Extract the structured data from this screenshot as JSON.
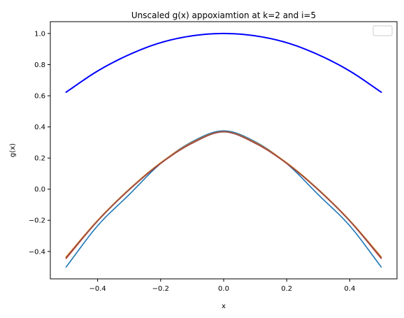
{
  "chart_data": {
    "type": "line",
    "title": "Unscaled g(x) appoxiamtion at k=2 and i=5",
    "xlabel": "x",
    "ylabel": "g(x)",
    "xlim": [
      -0.55,
      0.55
    ],
    "ylim": [
      -0.576,
      1.076
    ],
    "xticks": [
      -0.4,
      -0.2,
      0.0,
      0.2,
      0.4
    ],
    "xtick_labels": [
      "−0.4",
      "−0.2",
      "0.0",
      "0.2",
      "0.4"
    ],
    "yticks": [
      -0.4,
      -0.2,
      0.0,
      0.2,
      0.4,
      0.6,
      0.8,
      1.0
    ],
    "ytick_labels": [
      "−0.4",
      "−0.2",
      "0.0",
      "0.2",
      "0.4",
      "0.6",
      "0.8",
      "1.0"
    ],
    "grid": false,
    "legend": "top-right (empty)",
    "series": [
      {
        "color": "#0000ff",
        "x": [
          -0.5,
          -0.4,
          -0.3,
          -0.2,
          -0.1,
          0.0,
          0.1,
          0.2,
          0.3,
          0.4,
          0.5
        ],
        "values": [
          0.623,
          0.759,
          0.864,
          0.941,
          0.985,
          1.0,
          0.985,
          0.941,
          0.864,
          0.759,
          0.623
        ]
      },
      {
        "color": "#1f77b4",
        "x": [
          -0.5,
          -0.4,
          -0.3,
          -0.2,
          -0.1,
          0.0,
          0.1,
          0.2,
          0.3,
          0.4,
          0.5
        ],
        "values": [
          -0.5,
          -0.235,
          -0.035,
          0.165,
          0.305,
          0.375,
          0.305,
          0.165,
          -0.035,
          -0.235,
          -0.5
        ]
      },
      {
        "color": "#ff7f0e",
        "x": [
          -0.5,
          -0.4,
          -0.3,
          -0.2,
          -0.1,
          0.0,
          0.1,
          0.2,
          0.3,
          0.4,
          0.5
        ],
        "values": [
          -0.435,
          -0.2,
          0.0,
          0.17,
          0.3,
          0.37,
          0.3,
          0.17,
          0.0,
          -0.2,
          -0.435
        ]
      },
      {
        "color": "#d62728",
        "x": [
          -0.5,
          -0.4,
          -0.3,
          -0.2,
          -0.1,
          0.0,
          0.1,
          0.2,
          0.3,
          0.4,
          0.5
        ],
        "values": [
          -0.445,
          -0.205,
          -0.005,
          0.165,
          0.295,
          0.368,
          0.295,
          0.165,
          -0.005,
          -0.205,
          -0.445
        ]
      },
      {
        "color": "#8c564b",
        "x": [
          -0.5,
          -0.4,
          -0.3,
          -0.2,
          -0.1,
          0.0,
          0.1,
          0.2,
          0.3,
          0.4,
          0.5
        ],
        "values": [
          -0.44,
          -0.203,
          -0.003,
          0.167,
          0.297,
          0.369,
          0.297,
          0.167,
          -0.003,
          -0.203,
          -0.44
        ]
      }
    ]
  }
}
